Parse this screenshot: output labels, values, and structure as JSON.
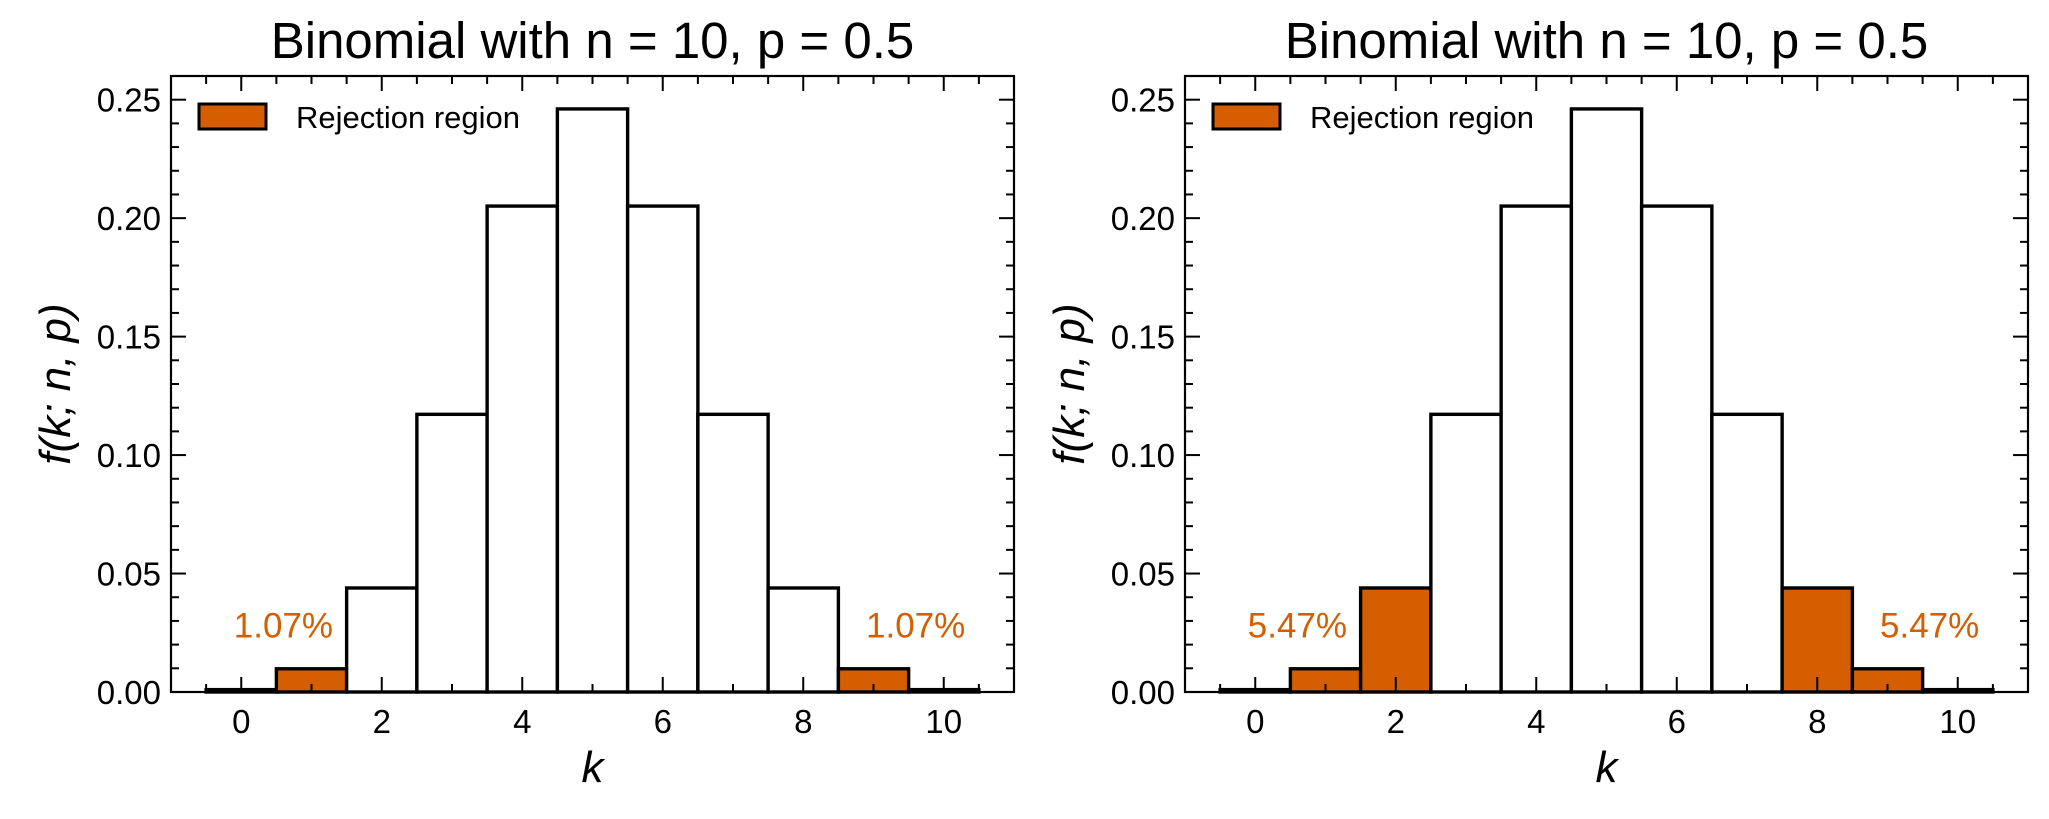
{
  "colors": {
    "reject": "#d45e00",
    "edge": "#000000",
    "face": "#ffffff"
  },
  "chart_data": [
    {
      "type": "bar",
      "title": "Binomial with n = 10, p = 0.5",
      "xlabel": "k",
      "ylabel": "f(k; n, p)",
      "xlim": [
        -1,
        11
      ],
      "ylim": [
        0,
        0.26
      ],
      "xticks": [
        0,
        2,
        4,
        6,
        8,
        10
      ],
      "yticks": [
        0.0,
        0.05,
        0.1,
        0.15,
        0.2,
        0.25
      ],
      "ytick_labels": [
        "0.00",
        "0.05",
        "0.10",
        "0.15",
        "0.20",
        "0.25"
      ],
      "categories": [
        0,
        1,
        2,
        3,
        4,
        5,
        6,
        7,
        8,
        9,
        10
      ],
      "values": [
        0.001,
        0.0098,
        0.0439,
        0.1172,
        0.2051,
        0.2461,
        0.2051,
        0.1172,
        0.0439,
        0.0098,
        0.001
      ],
      "rejection": [
        true,
        true,
        false,
        false,
        false,
        false,
        false,
        false,
        false,
        true,
        true
      ],
      "legend": {
        "label": "Rejection region",
        "position": "top-left"
      },
      "annotations": [
        {
          "text": "1.07%",
          "x": 0.6,
          "y": 0.023
        },
        {
          "text": "1.07%",
          "x": 9.6,
          "y": 0.023
        }
      ]
    },
    {
      "type": "bar",
      "title": "Binomial with n = 10, p = 0.5",
      "xlabel": "k",
      "ylabel": "f(k; n, p)",
      "xlim": [
        -1,
        11
      ],
      "ylim": [
        0,
        0.26
      ],
      "xticks": [
        0,
        2,
        4,
        6,
        8,
        10
      ],
      "yticks": [
        0.0,
        0.05,
        0.1,
        0.15,
        0.2,
        0.25
      ],
      "ytick_labels": [
        "0.00",
        "0.05",
        "0.10",
        "0.15",
        "0.20",
        "0.25"
      ],
      "categories": [
        0,
        1,
        2,
        3,
        4,
        5,
        6,
        7,
        8,
        9,
        10
      ],
      "values": [
        0.001,
        0.0098,
        0.0439,
        0.1172,
        0.2051,
        0.2461,
        0.2051,
        0.1172,
        0.0439,
        0.0098,
        0.001
      ],
      "rejection": [
        true,
        true,
        true,
        false,
        false,
        false,
        false,
        false,
        true,
        true,
        true
      ],
      "legend": {
        "label": "Rejection region",
        "position": "top-left"
      },
      "annotations": [
        {
          "text": "5.47%",
          "x": 0.6,
          "y": 0.023
        },
        {
          "text": "5.47%",
          "x": 9.6,
          "y": 0.023
        }
      ]
    }
  ]
}
